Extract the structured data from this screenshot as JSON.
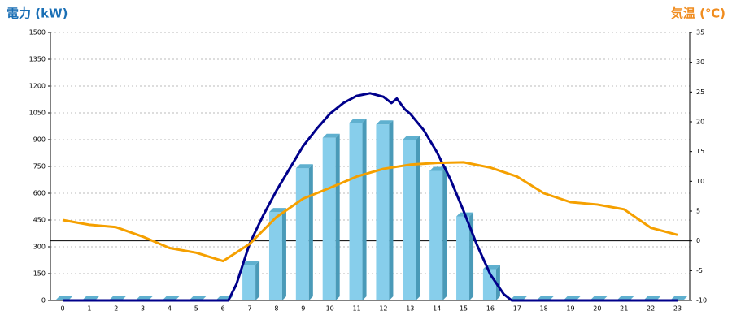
{
  "chart_data": {
    "type": "combo",
    "title": "電力 (kW)",
    "y2_title": "気温 (℃)",
    "categories": [
      "0",
      "1",
      "2",
      "3",
      "4",
      "5",
      "6",
      "7",
      "8",
      "9",
      "10",
      "11",
      "12",
      "13",
      "14",
      "15",
      "16",
      "17",
      "18",
      "19",
      "20",
      "21",
      "22",
      "23"
    ],
    "ylim": [
      0,
      1500
    ],
    "yticks": [
      0,
      150,
      300,
      450,
      600,
      750,
      900,
      1050,
      1200,
      1350,
      1500
    ],
    "y2lim": [
      -10,
      35
    ],
    "y2ticks": [
      -10,
      -5,
      0,
      5,
      10,
      15,
      20,
      25,
      30,
      35
    ],
    "grid": true,
    "y2_zero_line": true,
    "series": [
      {
        "type": "bar",
        "color": "#87ceeb",
        "values": [
          0,
          0,
          0,
          0,
          0,
          0,
          0,
          200,
          495,
          740,
          910,
          995,
          985,
          900,
          725,
          470,
          175,
          0,
          0,
          0,
          0,
          0,
          0,
          0
        ]
      },
      {
        "type": "line",
        "color": "#00008b",
        "x": [
          0,
          6.2,
          6.5,
          7,
          7.5,
          8,
          8.5,
          9,
          9.5,
          10,
          10.5,
          11,
          11.5,
          12,
          12.3,
          12.5,
          12.8,
          13,
          13.5,
          14,
          14.5,
          15,
          15.5,
          16,
          16.5,
          16.8,
          23
        ],
        "values": [
          0,
          0,
          90,
          320,
          475,
          615,
          740,
          865,
          960,
          1045,
          1105,
          1145,
          1160,
          1140,
          1105,
          1130,
          1070,
          1045,
          955,
          830,
          680,
          500,
          310,
          145,
          35,
          0,
          0
        ]
      },
      {
        "type": "line",
        "axis": "y2",
        "color": "#f5a000",
        "values": [
          3.5,
          2.7,
          2.3,
          0.7,
          -1.2,
          -2,
          -3.4,
          -0.5,
          4,
          7.1,
          8.9,
          10.8,
          12.1,
          12.8,
          13.1,
          13.2,
          12.3,
          10.8,
          8,
          6.5,
          6.1,
          5.3,
          2.2,
          1
        ]
      }
    ]
  }
}
